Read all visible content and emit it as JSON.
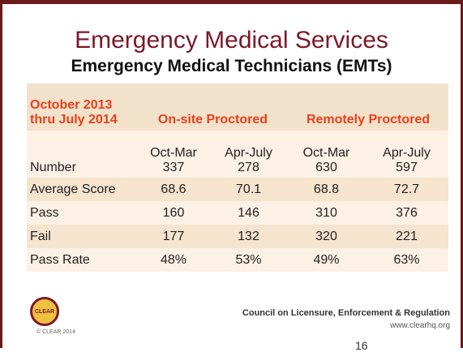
{
  "header": {
    "title": "Emergency Medical Services",
    "subtitle": "Emergency Medical Technicians (EMTs)"
  },
  "table": {
    "period_lines": [
      "October 2013",
      "thru July 2014"
    ],
    "groups": [
      "On-site Proctored",
      "Remotely Proctored"
    ],
    "subperiods": [
      "Oct-Mar",
      "Apr-July",
      "Oct-Mar",
      "Apr-July"
    ],
    "rows": [
      {
        "label": "Number",
        "values": [
          "337",
          "278",
          "630",
          "597"
        ]
      },
      {
        "label": "Average Score",
        "values": [
          "68.6",
          "70.1",
          "68.8",
          "72.7"
        ]
      },
      {
        "label": "Pass",
        "values": [
          "160",
          "146",
          "310",
          "376"
        ]
      },
      {
        "label": "Fail",
        "values": [
          "177",
          "132",
          "320",
          "221"
        ]
      },
      {
        "label": "Pass Rate",
        "values": [
          "48%",
          "53%",
          "49%",
          "63%"
        ]
      }
    ]
  },
  "footer": {
    "logo_text": "CLEAR",
    "copyright": "© CLEAR 2014",
    "org": "Council on Licensure, Enforcement & Regulation",
    "url": "www.clearhq.org",
    "page_number": "16"
  }
}
